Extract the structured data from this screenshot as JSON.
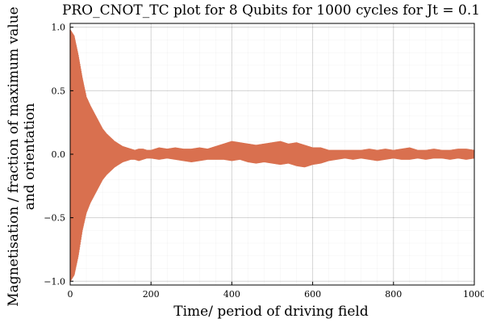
{
  "chart_data": {
    "type": "line",
    "title": "PRO_CNOT_TC plot for 8 Qubits for 1000 cycles for Jt = 0.1",
    "xlabel": "Time/ period of driving field",
    "ylabel_lines": [
      "Magnetisation / fraction of maximum value",
      "and orientation"
    ],
    "xlim": [
      0,
      1000
    ],
    "ylim": [
      -1.03,
      1.03
    ],
    "xticks": [
      0,
      200,
      400,
      600,
      800,
      1000
    ],
    "xtick_labels": [
      "0",
      "200",
      "400",
      "600",
      "800",
      "1000"
    ],
    "yticks": [
      -1.0,
      -0.5,
      0.0,
      0.5,
      1.0
    ],
    "ytick_labels": [
      "−1.0",
      "−0.5",
      "0.0",
      "0.5",
      "1.0"
    ],
    "grid": true,
    "legend": false,
    "series": [
      {
        "color": "#d9704f",
        "style": "oscillation-envelope",
        "x": [
          0,
          10,
          20,
          30,
          40,
          50,
          60,
          70,
          80,
          90,
          100,
          110,
          120,
          130,
          140,
          150,
          160,
          170,
          180,
          190,
          200,
          220,
          240,
          260,
          280,
          300,
          320,
          340,
          360,
          380,
          400,
          420,
          440,
          460,
          480,
          500,
          520,
          540,
          560,
          580,
          600,
          620,
          640,
          660,
          680,
          700,
          720,
          740,
          760,
          780,
          800,
          820,
          840,
          860,
          880,
          900,
          920,
          940,
          960,
          980,
          1000
        ],
        "y_max": [
          0.98,
          0.93,
          0.78,
          0.6,
          0.45,
          0.38,
          0.32,
          0.26,
          0.2,
          0.16,
          0.13,
          0.1,
          0.08,
          0.06,
          0.05,
          0.04,
          0.03,
          0.04,
          0.04,
          0.03,
          0.03,
          0.05,
          0.04,
          0.05,
          0.04,
          0.04,
          0.05,
          0.04,
          0.06,
          0.08,
          0.1,
          0.09,
          0.08,
          0.07,
          0.08,
          0.09,
          0.1,
          0.08,
          0.09,
          0.07,
          0.05,
          0.05,
          0.03,
          0.03,
          0.03,
          0.03,
          0.03,
          0.04,
          0.03,
          0.04,
          0.03,
          0.04,
          0.05,
          0.03,
          0.03,
          0.04,
          0.03,
          0.03,
          0.04,
          0.04,
          0.03
        ],
        "y_min": [
          -1.0,
          -0.95,
          -0.8,
          -0.6,
          -0.46,
          -0.38,
          -0.32,
          -0.26,
          -0.2,
          -0.16,
          -0.13,
          -0.1,
          -0.08,
          -0.06,
          -0.05,
          -0.04,
          -0.04,
          -0.05,
          -0.04,
          -0.03,
          -0.03,
          -0.04,
          -0.03,
          -0.04,
          -0.05,
          -0.06,
          -0.05,
          -0.04,
          -0.04,
          -0.04,
          -0.05,
          -0.04,
          -0.06,
          -0.07,
          -0.06,
          -0.07,
          -0.08,
          -0.07,
          -0.09,
          -0.1,
          -0.08,
          -0.07,
          -0.05,
          -0.04,
          -0.03,
          -0.04,
          -0.03,
          -0.04,
          -0.05,
          -0.04,
          -0.03,
          -0.04,
          -0.04,
          -0.03,
          -0.04,
          -0.03,
          -0.03,
          -0.04,
          -0.03,
          -0.04,
          -0.03
        ]
      }
    ]
  }
}
